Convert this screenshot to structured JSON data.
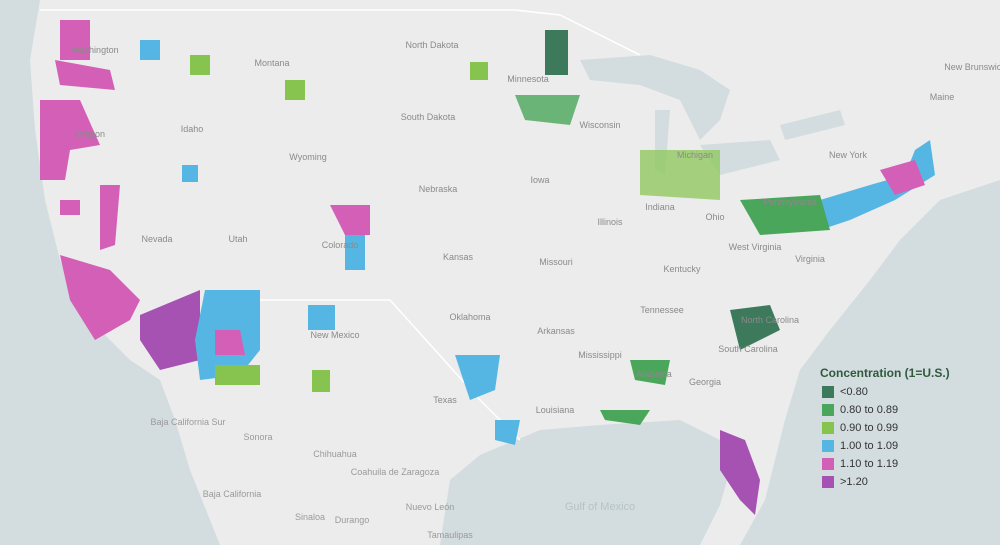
{
  "map": {
    "places": [
      "Washington",
      "Montana",
      "North Dakota",
      "Minnesota",
      "South Dakota",
      "Oregon",
      "Idaho",
      "Wyoming",
      "Wisconsin",
      "Michigan",
      "Iowa",
      "Nebraska",
      "Nevada",
      "Utah",
      "Colorado",
      "Kansas",
      "Missouri",
      "Illinois",
      "Indiana",
      "Ohio",
      "Pennsylvania",
      "New York",
      "West Virginia",
      "Kentucky",
      "Virginia",
      "Tennessee",
      "North Carolina",
      "South Carolina",
      "Oklahoma",
      "Arkansas",
      "Mississippi",
      "Alabama",
      "Georgia",
      "Louisiana",
      "Texas",
      "New Mexico",
      "Maine",
      "New Brunswick"
    ],
    "mexico": [
      "Baja California",
      "Baja California Sur",
      "Sonora",
      "Chihuahua",
      "Coahuila de Zaragoza",
      "Nuevo León",
      "Durango",
      "Sinaloa",
      "Tamaulipas"
    ],
    "water": "Gulf of Mexico",
    "legend": {
      "title": "Concentration (1=U.S.)",
      "items": [
        {
          "label": "<0.80",
          "color": "#3d7a5c"
        },
        {
          "label": "0.80 to 0.89",
          "color": "#4aa65a"
        },
        {
          "label": "0.90 to 0.99",
          "color": "#86c44f"
        },
        {
          "label": "1.00 to 1.09",
          "color": "#56b6e3"
        },
        {
          "label": "1.10 to 1.19",
          "color": "#d35fb7"
        },
        {
          "label": ">1.20",
          "color": "#a552b3"
        }
      ]
    }
  }
}
